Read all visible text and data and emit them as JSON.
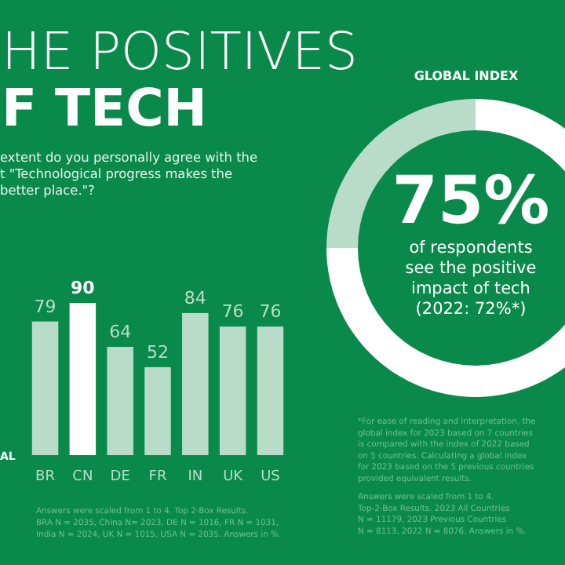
{
  "chart_data": [
    {
      "type": "bar",
      "title": "HE POSITIVES\nF TECH",
      "subtitle": "extent do you personally agree with the\nt \"Technological progress makes the\nbetter place.\"?",
      "categories": [
        "BR",
        "CN",
        "DE",
        "FR",
        "IN",
        "UK",
        "US"
      ],
      "values": [
        79,
        90,
        64,
        52,
        84,
        76,
        76
      ],
      "colors": [
        "#b9dcc8",
        "#ffffff",
        "#b9dcc8",
        "#b9dcc8",
        "#b9dcc8",
        "#b9dcc8",
        "#b9dcc8"
      ],
      "ylim": [
        0,
        90
      ],
      "data_labels": true,
      "tick_labels": "x",
      "annotations": [
        "AL",
        "Answers were scaled from 1 to 4. Top 2-Box Results.\nBRA N = 2035, China N= 2023, DE N = 1016, FR N = 1031,\nIndia N = 2024, UK N = 1015, USA N = 2035. Answers in %."
      ]
    },
    {
      "type": "donut",
      "title": "GLOBAL INDEX",
      "categories": [
        null,
        null
      ],
      "values": [
        75,
        25
      ],
      "colors": [
        "#ffffff",
        "#b9dcc8"
      ],
      "value_labels": [
        "75%",
        null
      ],
      "annotations": [
        "of respondents\nsee the positive\nimpact of tech\n(2022: 72%*)",
        "*For ease of reading and interpretation, the\nglobal index for 2023 based on 7 countries\nis compared with the index of 2022 based\non 5 countries. Calculating a global index\nfor 2023 based on the 5 previous countries\nprovided equivalent results.",
        "Answers were scaled from 1 to 4.\nTop-2-Box Results. 2023 All Countries\nN = 11179, 2023 Previous Countries\nN = 8113, 2022 N = 8076. Answers in %."
      ]
    }
  ]
}
